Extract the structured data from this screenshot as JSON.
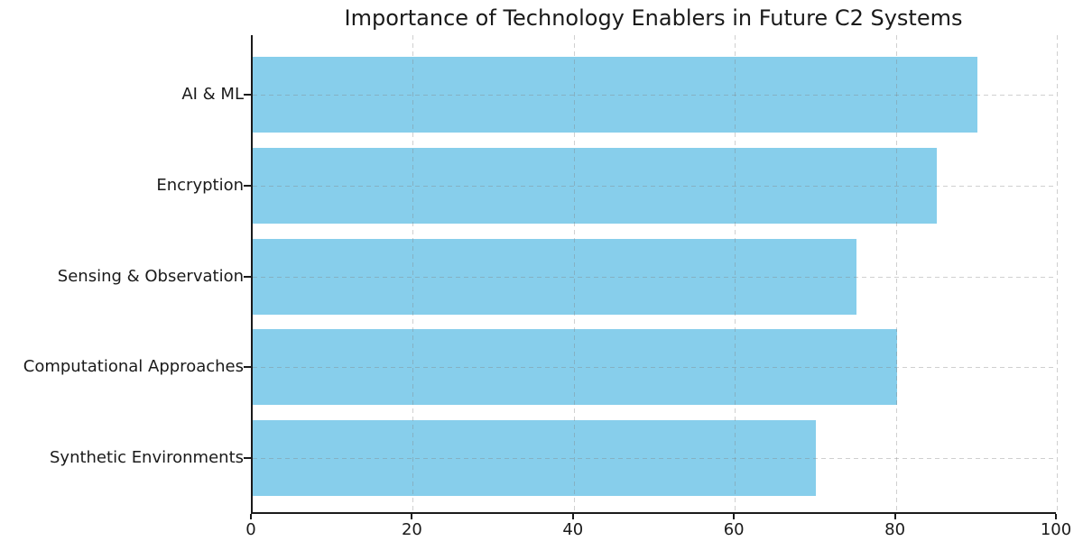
{
  "chart_data": {
    "type": "bar",
    "orientation": "horizontal",
    "title": "Importance of Technology Enablers in Future C2 Systems",
    "categories": [
      "AI & ML",
      "Encryption",
      "Sensing & Observation",
      "Computational Approaches",
      "Synthetic Environments"
    ],
    "values": [
      90,
      85,
      75,
      80,
      70
    ],
    "xlabel": "",
    "ylabel": "",
    "xlim": [
      0,
      100
    ],
    "xticks": [
      0,
      20,
      40,
      60,
      80,
      100
    ],
    "xtick_labels": [
      "0",
      "20",
      "40",
      "60",
      "80",
      "100"
    ],
    "grid": {
      "shown": true,
      "style": "dashed",
      "x": true,
      "y": true
    },
    "legend": {
      "shown": false
    },
    "colors": {
      "bar": "#87CEEB",
      "background": "#ffffff",
      "text": "#1a1a1a",
      "spine": "#1a1a1a",
      "gridline": "#a8a8a8"
    }
  }
}
